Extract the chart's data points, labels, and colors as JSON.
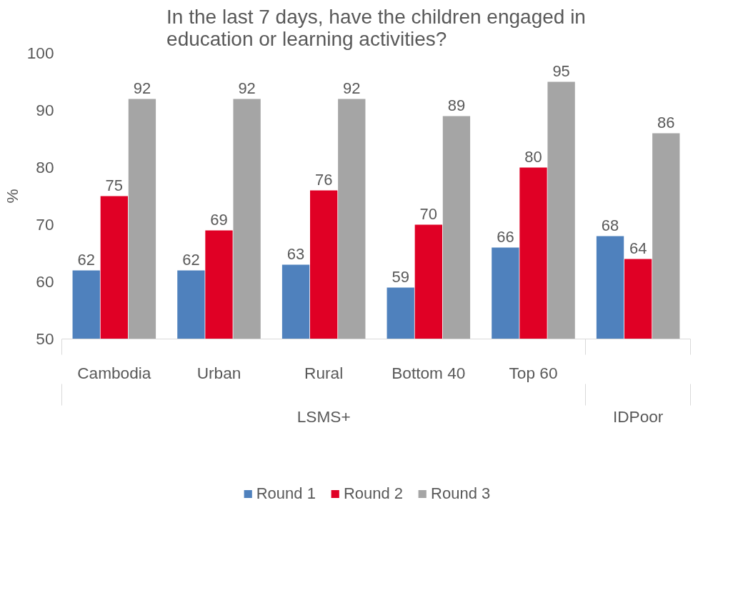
{
  "chart_data": {
    "type": "bar",
    "title": "In the last 7 days, have the children engaged in education or learning activities?",
    "ylabel": "%",
    "categories": [
      "Cambodia",
      "Urban",
      "Rural",
      "Bottom 40",
      "Top 60",
      null
    ],
    "annotations": [
      "LSMS+",
      "IDPoor"
    ],
    "series": [
      {
        "name": "Round 1",
        "color": "#4f81bd",
        "values": [
          62,
          62,
          63,
          59,
          66,
          68
        ]
      },
      {
        "name": "Round 2",
        "color": "#e00025",
        "values": [
          75,
          69,
          76,
          70,
          80,
          64
        ]
      },
      {
        "name": "Round 3",
        "color": "#a5a5a5",
        "values": [
          92,
          92,
          92,
          89,
          95,
          86
        ]
      }
    ],
    "ylim": [
      50,
      100
    ],
    "yticks": [
      50,
      60,
      70,
      80,
      90,
      100
    ],
    "data_labels": true,
    "grid": false,
    "legend": "bottom"
  }
}
